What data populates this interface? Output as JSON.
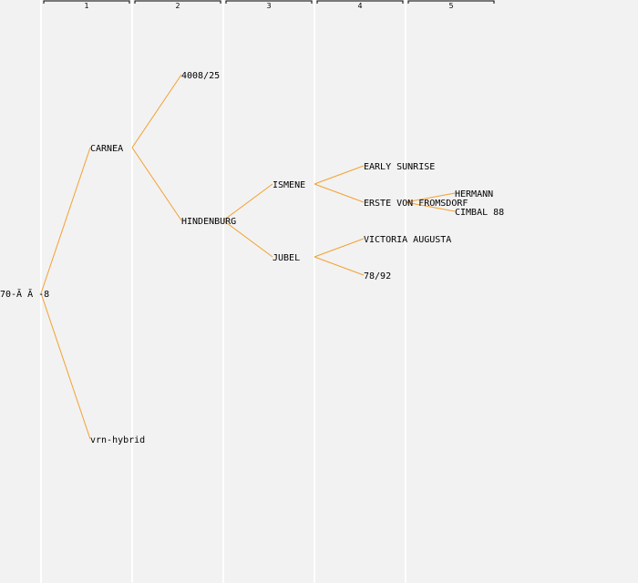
{
  "generations": [
    "1",
    "2",
    "3",
    "4",
    "5"
  ],
  "nodes": [
    {
      "id": "root",
      "label": "70-Ă Ă -8",
      "gen": 0,
      "row": 16
    },
    {
      "id": "carnea",
      "label": "CARNEA",
      "gen": 1,
      "row": 8
    },
    {
      "id": "vrn",
      "label": "vrn-hybrid",
      "gen": 1,
      "row": 24
    },
    {
      "id": "n4008",
      "label": "4008/25",
      "gen": 2,
      "row": 4
    },
    {
      "id": "hind",
      "label": "HINDENBURG",
      "gen": 2,
      "row": 12
    },
    {
      "id": "ismene",
      "label": "ISMENE",
      "gen": 3,
      "row": 10
    },
    {
      "id": "jubel",
      "label": "JUBEL",
      "gen": 3,
      "row": 14
    },
    {
      "id": "early",
      "label": "EARLY SUNRISE",
      "gen": 4,
      "row": 9
    },
    {
      "id": "erste",
      "label": "ERSTE VON FROMSDORF",
      "gen": 4,
      "row": 11
    },
    {
      "id": "victoria",
      "label": "VICTORIA AUGUSTA",
      "gen": 4,
      "row": 13
    },
    {
      "id": "n7892",
      "label": "78/92",
      "gen": 4,
      "row": 15
    },
    {
      "id": "hermann",
      "label": "HERMANN",
      "gen": 5,
      "row": 10.5
    },
    {
      "id": "cimbal",
      "label": "CIMBAL 88",
      "gen": 5,
      "row": 11.5
    }
  ],
  "edges": [
    [
      "root",
      "carnea"
    ],
    [
      "root",
      "vrn"
    ],
    [
      "carnea",
      "n4008"
    ],
    [
      "carnea",
      "hind"
    ],
    [
      "hind",
      "ismene"
    ],
    [
      "hind",
      "jubel"
    ],
    [
      "ismene",
      "early"
    ],
    [
      "ismene",
      "erste"
    ],
    [
      "jubel",
      "victoria"
    ],
    [
      "jubel",
      "n7892"
    ],
    [
      "erste",
      "hermann"
    ],
    [
      "erste",
      "cimbal"
    ]
  ],
  "colors": {
    "background": "#f2f2f2",
    "edge": "#f4a030",
    "column_line": "#ffffff",
    "text": "#000000"
  }
}
